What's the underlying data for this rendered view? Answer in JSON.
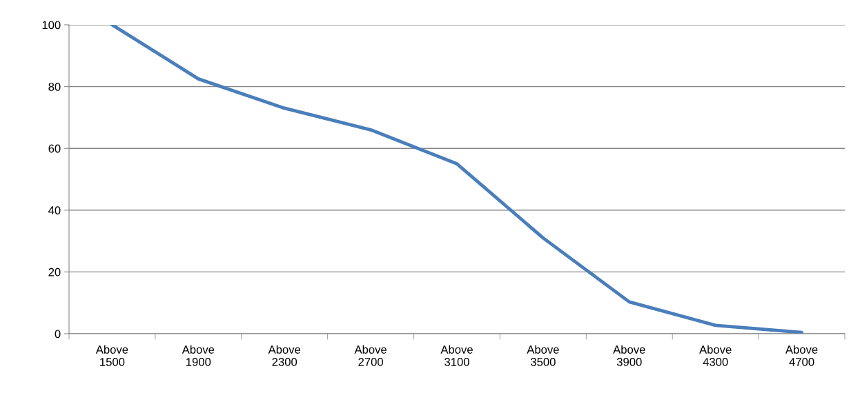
{
  "chart_data": {
    "type": "line",
    "categories": [
      "Above 1500",
      "Above 1900",
      "Above 2300",
      "Above 2700",
      "Above 3100",
      "Above 3500",
      "Above 3900",
      "Above 4300",
      "Above 4700"
    ],
    "series": [
      {
        "color": "#4a7ebb",
        "values": [
          100,
          82.5,
          73,
          66,
          55,
          31,
          10.3,
          2.7,
          0.4
        ]
      }
    ],
    "ylim": [
      0,
      100
    ],
    "yticks": [
      0,
      20,
      40,
      60,
      80,
      100
    ],
    "grid": "y",
    "marker": "none",
    "line_style": "solid",
    "legend": false
  }
}
